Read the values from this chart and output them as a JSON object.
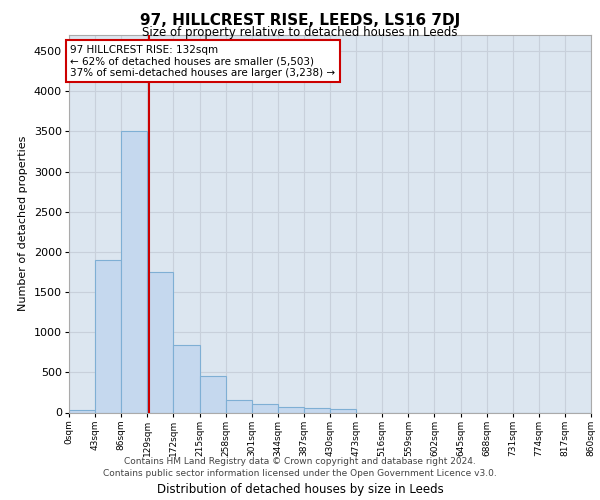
{
  "title": "97, HILLCREST RISE, LEEDS, LS16 7DJ",
  "subtitle": "Size of property relative to detached houses in Leeds",
  "xlabel": "Distribution of detached houses by size in Leeds",
  "ylabel": "Number of detached properties",
  "bar_values": [
    30,
    1900,
    3500,
    1750,
    840,
    450,
    160,
    100,
    70,
    55,
    40,
    0,
    0,
    0,
    0,
    0,
    0,
    0,
    0,
    0
  ],
  "bin_edges": [
    0,
    43,
    86,
    129,
    172,
    215,
    258,
    301,
    344,
    387,
    430,
    473,
    516,
    559,
    602,
    645,
    688,
    731,
    774,
    817,
    860
  ],
  "bar_color": "#c5d8ee",
  "bar_edge_color": "#7fafd4",
  "property_size": 132,
  "red_line_color": "#cc0000",
  "annotation_line1": "97 HILLCREST RISE: 132sqm",
  "annotation_line2": "← 62% of detached houses are smaller (5,503)",
  "annotation_line3": "37% of semi-detached houses are larger (3,238) →",
  "annotation_box_color": "#ffffff",
  "annotation_box_edge_color": "#cc0000",
  "ylim": [
    0,
    4700
  ],
  "yticks": [
    0,
    500,
    1000,
    1500,
    2000,
    2500,
    3000,
    3500,
    4000,
    4500
  ],
  "grid_color": "#c8d0db",
  "background_color": "#dce6f0",
  "footer_line1": "Contains HM Land Registry data © Crown copyright and database right 2024.",
  "footer_line2": "Contains public sector information licensed under the Open Government Licence v3.0.",
  "tick_labels": [
    "0sqm",
    "43sqm",
    "86sqm",
    "129sqm",
    "172sqm",
    "215sqm",
    "258sqm",
    "301sqm",
    "344sqm",
    "387sqm",
    "430sqm",
    "473sqm",
    "516sqm",
    "559sqm",
    "602sqm",
    "645sqm",
    "688sqm",
    "731sqm",
    "774sqm",
    "817sqm",
    "860sqm"
  ]
}
